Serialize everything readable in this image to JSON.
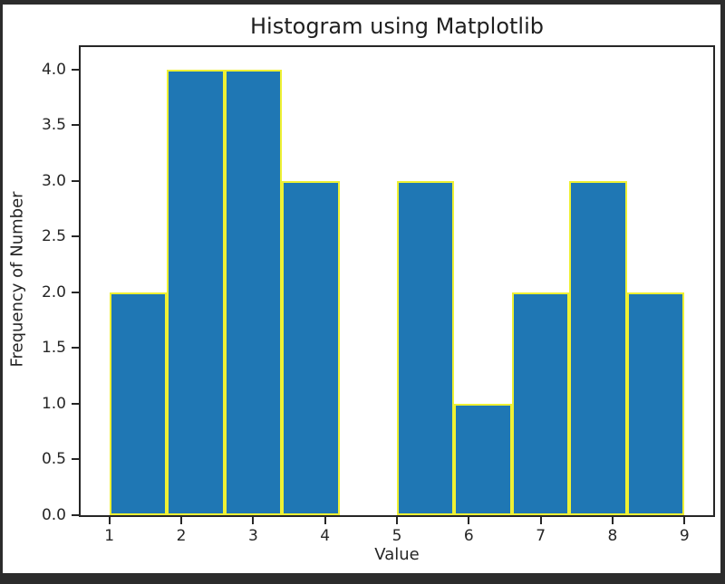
{
  "chart_data": {
    "type": "bar",
    "subtype": "histogram",
    "title": "Histogram using Matplotlib",
    "xlabel": "Value",
    "ylabel": "Frequency of Number",
    "bin_edges": [
      1.0,
      1.8,
      2.6,
      3.4,
      4.2,
      5.0,
      5.8,
      6.6,
      7.4,
      8.2,
      9.0
    ],
    "counts": [
      2,
      4,
      4,
      3,
      0,
      3,
      1,
      2,
      3,
      2
    ],
    "xlim": [
      0.6,
      9.4
    ],
    "ylim": [
      0.0,
      4.2
    ],
    "x_ticks": [
      1,
      2,
      3,
      4,
      5,
      6,
      7,
      8,
      9
    ],
    "x_tick_labels": [
      "1",
      "2",
      "3",
      "4",
      "5",
      "6",
      "7",
      "8",
      "9"
    ],
    "y_ticks": [
      0.0,
      0.5,
      1.0,
      1.5,
      2.0,
      2.5,
      3.0,
      3.5,
      4.0
    ],
    "y_tick_labels": [
      "0.0",
      "0.5",
      "1.0",
      "1.5",
      "2.0",
      "2.5",
      "3.0",
      "3.5",
      "4.0"
    ],
    "bar_color": "#1f77b4",
    "bar_edge_color": "#eef033",
    "grid": false,
    "legend_position": "none"
  }
}
